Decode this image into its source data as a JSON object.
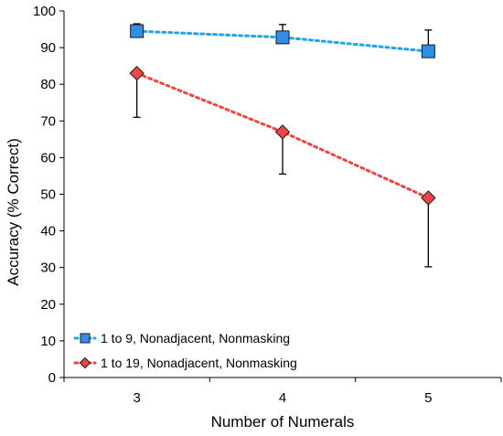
{
  "chart_data": {
    "type": "line",
    "title": "",
    "xlabel": "Number of Numerals",
    "ylabel": "Accuracy (% Correct)",
    "x": [
      3,
      4,
      5
    ],
    "xticks": [
      "3",
      "4",
      "5"
    ],
    "xlim": [
      2.5,
      5.5
    ],
    "ylim": [
      0,
      100
    ],
    "yticks": [
      "0",
      "10",
      "20",
      "30",
      "40",
      "50",
      "60",
      "70",
      "80",
      "90",
      "100"
    ],
    "grid": false,
    "legend_position": "bottom-left",
    "series": [
      {
        "name": "1 to 9, Nonadjacent, Nonmasking",
        "values": [
          94.5,
          92.8,
          89.0
        ],
        "error_upper": [
          2.0,
          3.5,
          5.8
        ],
        "color": "#1ea6e8",
        "marker": "square",
        "marker_fill": "#2f8fe6",
        "line_style": "dotted"
      },
      {
        "name": "1 to 19, Nonadjacent, Nonmasking",
        "values": [
          83.0,
          67.0,
          49.0
        ],
        "error_lower": [
          12.0,
          11.5,
          18.8
        ],
        "color": "#f04545",
        "marker": "diamond",
        "marker_fill": "#f04545",
        "line_style": "dotted"
      }
    ]
  }
}
